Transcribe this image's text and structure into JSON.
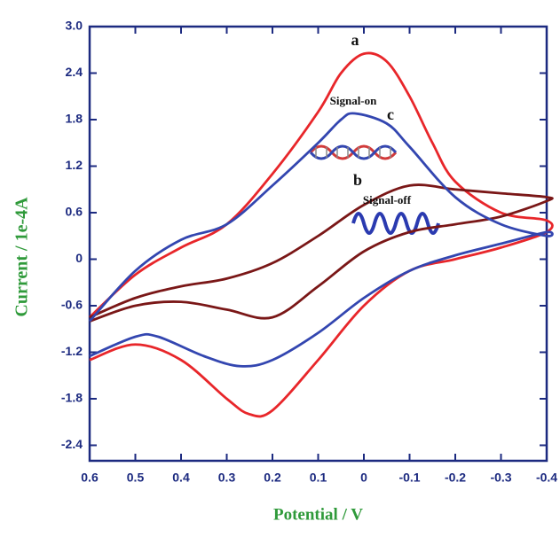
{
  "chart_data": {
    "type": "line",
    "x_label": "Potential / V",
    "y_label": "Current / 1e-4A",
    "xlim": [
      0.6,
      -0.4
    ],
    "xticks": [
      0.6,
      0.5,
      0.4,
      0.3,
      0.2,
      0.1,
      0,
      -0.1,
      -0.2,
      -0.3,
      -0.4
    ],
    "ylim": [
      -2.6,
      3.0
    ],
    "yticks": [
      {
        "value": 3,
        "label": "3.0"
      },
      2.4,
      1.8,
      1.2,
      0.6,
      0,
      -0.6,
      -1.2,
      -1.8,
      -2.4
    ],
    "series": [
      {
        "name": "a",
        "color": "#e8262a",
        "x": [
          0.6,
          0.5,
          0.4,
          0.3,
          0.2,
          0.1,
          0.05,
          0,
          -0.05,
          -0.1,
          -0.15,
          -0.2,
          -0.3,
          -0.4,
          -0.4,
          -0.3,
          -0.2,
          -0.1,
          0,
          0.1,
          0.2,
          0.25,
          0.3,
          0.4,
          0.5,
          0.6
        ],
        "y": [
          -0.75,
          -0.2,
          0.15,
          0.45,
          1.1,
          1.9,
          2.4,
          2.65,
          2.55,
          2.1,
          1.5,
          1.0,
          0.6,
          0.5,
          0.35,
          0.15,
          0.0,
          -0.15,
          -0.6,
          -1.3,
          -1.95,
          -2.0,
          -1.8,
          -1.3,
          -1.1,
          -1.3
        ]
      },
      {
        "name": "b",
        "color": "#7a1717",
        "x": [
          0.6,
          0.5,
          0.4,
          0.3,
          0.2,
          0.1,
          0,
          -0.1,
          -0.2,
          -0.3,
          -0.4,
          -0.4,
          -0.3,
          -0.2,
          -0.1,
          0,
          0.1,
          0.2,
          0.3,
          0.4,
          0.5,
          0.6
        ],
        "y": [
          -0.75,
          -0.5,
          -0.35,
          -0.25,
          -0.05,
          0.3,
          0.7,
          0.95,
          0.9,
          0.85,
          0.8,
          0.75,
          0.55,
          0.45,
          0.35,
          0.1,
          -0.35,
          -0.75,
          -0.65,
          -0.55,
          -0.6,
          -0.8
        ]
      },
      {
        "name": "c",
        "color": "#3346b0",
        "x": [
          0.6,
          0.5,
          0.4,
          0.3,
          0.2,
          0.1,
          0.05,
          0.02,
          -0.05,
          -0.1,
          -0.2,
          -0.3,
          -0.4,
          -0.4,
          -0.3,
          -0.2,
          -0.1,
          0,
          0.1,
          0.2,
          0.27,
          0.35,
          0.45,
          0.5,
          0.6
        ],
        "y": [
          -0.8,
          -0.15,
          0.25,
          0.45,
          0.95,
          1.5,
          1.8,
          1.88,
          1.75,
          1.45,
          0.8,
          0.45,
          0.3,
          0.35,
          0.2,
          0.05,
          -0.15,
          -0.5,
          -0.95,
          -1.3,
          -1.38,
          -1.25,
          -1.0,
          -1.0,
          -1.25
        ]
      }
    ],
    "annotations": [
      "Signal-on",
      "Signal-off"
    ]
  }
}
